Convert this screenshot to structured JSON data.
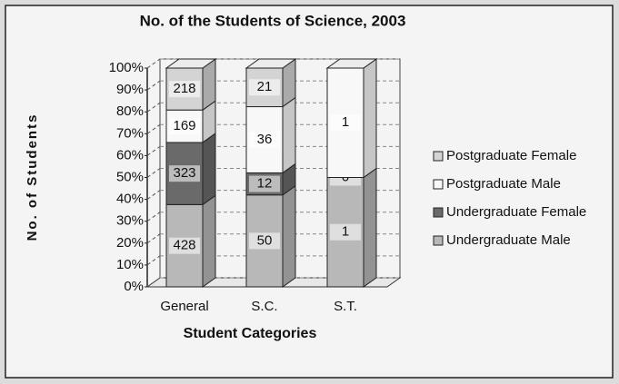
{
  "chart_data": {
    "type": "stacked_bar_100",
    "title": "No. of the Students of Science, 2003",
    "x_label": "Student Categories",
    "y_label": "No. of Students",
    "categories": [
      "General",
      "S.C.",
      "S.T."
    ],
    "series": [
      {
        "name": "Undergraduate Male",
        "color": "#b8b8b8",
        "values": [
          428,
          50,
          1
        ]
      },
      {
        "name": "Undergraduate Female",
        "color": "#6a6a6a",
        "values": [
          323,
          12,
          0
        ]
      },
      {
        "name": "Postgraduate Male",
        "color": "#f8f8f8",
        "values": [
          169,
          36,
          1
        ]
      },
      {
        "name": "Postgraduate Female",
        "color": "#d4d4d4",
        "values": [
          218,
          21,
          null
        ]
      }
    ],
    "ylim": [
      0,
      100
    ],
    "yticks": [
      {
        "value": 0,
        "label": "0%"
      },
      {
        "value": 10,
        "label": "10%"
      },
      {
        "value": 20,
        "label": "20%"
      },
      {
        "value": 30,
        "label": "30%"
      },
      {
        "value": 40,
        "label": "40%"
      },
      {
        "value": 50,
        "label": "50%"
      },
      {
        "value": 60,
        "label": "60%"
      },
      {
        "value": 70,
        "label": "70%"
      },
      {
        "value": 80,
        "label": "80%"
      },
      {
        "value": 90,
        "label": "90%"
      },
      {
        "value": 100,
        "label": "100%"
      }
    ],
    "grid": true,
    "legend": "right"
  }
}
